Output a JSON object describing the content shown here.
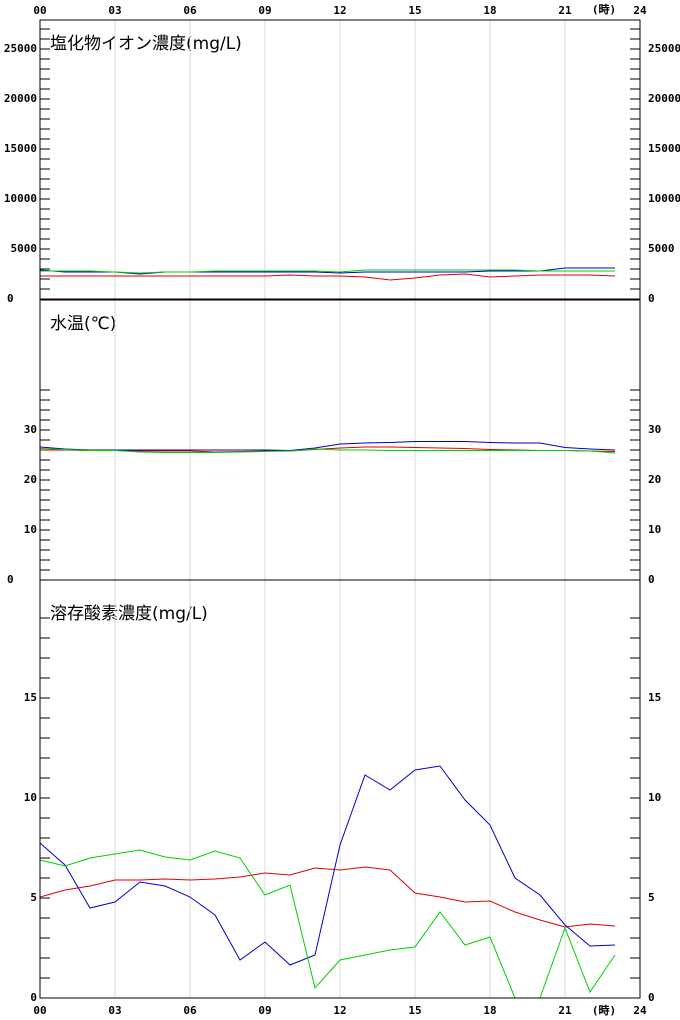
{
  "chart_data": [
    {
      "type": "line",
      "title": "塩化物イオン濃度(mg/L)",
      "xlabel": "(時)",
      "xtick_labels": "top",
      "x": [
        0,
        1,
        2,
        3,
        4,
        5,
        6,
        7,
        8,
        9,
        10,
        11,
        12,
        13,
        14,
        15,
        16,
        17,
        18,
        19,
        20,
        21,
        22,
        23
      ],
      "xlim": [
        0,
        24
      ],
      "xticks": [
        {
          "value": 0,
          "label": "00"
        },
        {
          "value": 3,
          "label": "03"
        },
        {
          "value": 6,
          "label": "06"
        },
        {
          "value": 9,
          "label": "09"
        },
        12,
        15,
        18,
        21,
        24
      ],
      "ylim": [
        0,
        27900
      ],
      "yticks": [
        0,
        5000,
        10000,
        15000,
        20000,
        25000
      ],
      "minor_yticks": [
        1000,
        2000,
        3000,
        4000,
        6000,
        7000,
        8000,
        9000,
        11000,
        12000,
        13000,
        14000,
        16000,
        17000,
        18000,
        19000,
        21000,
        22000,
        23000,
        24000,
        26000,
        27000
      ],
      "grid": true,
      "series": [
        {
          "color": "#e00000",
          "values": [
            2300,
            2300,
            2300,
            2300,
            2300,
            2300,
            2300,
            2300,
            2300,
            2300,
            2400,
            2300,
            2300,
            2200,
            1900,
            2100,
            2400,
            2500,
            2200,
            2300,
            2400,
            2400,
            2400,
            2300
          ]
        },
        {
          "color": "#0000cc",
          "values": [
            2900,
            2700,
            2700,
            2700,
            2500,
            2700,
            2700,
            2700,
            2700,
            2700,
            2700,
            2700,
            2600,
            2700,
            2700,
            2700,
            2700,
            2700,
            2800,
            2800,
            2800,
            3100,
            3100,
            3100
          ]
        },
        {
          "color": "#00d000",
          "values": [
            2800,
            2800,
            2800,
            2700,
            2600,
            2700,
            2700,
            2800,
            2800,
            2800,
            2800,
            2800,
            2700,
            2900,
            2900,
            2900,
            2900,
            2900,
            2900,
            2900,
            2800,
            2800,
            2800,
            2800
          ]
        }
      ]
    },
    {
      "type": "line",
      "title": "水温(℃)",
      "xtick_labels": "none",
      "x": [
        0,
        1,
        2,
        3,
        4,
        5,
        6,
        7,
        8,
        9,
        10,
        11,
        12,
        13,
        14,
        15,
        16,
        17,
        18,
        19,
        20,
        21,
        22,
        23
      ],
      "xlim": [
        0,
        24
      ],
      "xticks": [
        0,
        3,
        6,
        9,
        12,
        15,
        18,
        21,
        24
      ],
      "ylim": [
        0,
        56
      ],
      "yticks": [
        0,
        10,
        20,
        30
      ],
      "minor_yticks": [
        2,
        4,
        6,
        8,
        12,
        14,
        16,
        18,
        22,
        24,
        26,
        28,
        32,
        34,
        36,
        38
      ],
      "grid": true,
      "series": [
        {
          "color": "#e00000",
          "values": [
            26.0,
            26.0,
            25.9,
            25.9,
            25.8,
            25.8,
            25.8,
            25.6,
            25.7,
            25.8,
            25.8,
            26.1,
            26.4,
            26.6,
            26.6,
            26.5,
            26.4,
            26.3,
            26.1,
            26.0,
            25.9,
            25.9,
            25.8,
            25.7
          ]
        },
        {
          "color": "#0000cc",
          "values": [
            26.6,
            26.2,
            26.0,
            26.0,
            26.0,
            26.0,
            26.0,
            26.0,
            26.0,
            26.0,
            25.9,
            26.4,
            27.2,
            27.4,
            27.5,
            27.7,
            27.7,
            27.7,
            27.5,
            27.4,
            27.4,
            26.5,
            26.2,
            26.0
          ]
        },
        {
          "color": "#00d000",
          "values": [
            26.3,
            26.1,
            25.9,
            25.9,
            25.6,
            25.5,
            25.5,
            25.5,
            25.6,
            25.7,
            25.8,
            26.2,
            26.0,
            26.0,
            25.9,
            25.9,
            25.9,
            25.9,
            25.9,
            25.9,
            25.9,
            25.9,
            25.8,
            25.4
          ]
        }
      ]
    },
    {
      "type": "line",
      "title": "溶存酸素濃度(mg/L)",
      "xlabel": "(時)",
      "xtick_labels": "bottom",
      "x": [
        0,
        1,
        2,
        3,
        4,
        5,
        6,
        7,
        8,
        9,
        10,
        11,
        12,
        13,
        14,
        15,
        16,
        17,
        18,
        19,
        20,
        21,
        22,
        23
      ],
      "xlim": [
        0,
        24
      ],
      "xticks": [
        {
          "value": 0,
          "label": "00"
        },
        {
          "value": 3,
          "label": "03"
        },
        {
          "value": 6,
          "label": "06"
        },
        {
          "value": 9,
          "label": "09"
        },
        12,
        15,
        18,
        21,
        24
      ],
      "ylim": [
        0,
        20.9
      ],
      "yticks": [
        0,
        5,
        10,
        15
      ],
      "minor_yticks": [
        1,
        2,
        3,
        4,
        6,
        7,
        8,
        9,
        11,
        12,
        13,
        14,
        16,
        17,
        18,
        19
      ],
      "grid": true,
      "series": [
        {
          "color": "#e00000",
          "values": [
            5.05,
            5.4,
            5.6,
            5.9,
            5.9,
            5.95,
            5.9,
            5.95,
            6.05,
            6.25,
            6.15,
            6.5,
            6.4,
            6.55,
            6.4,
            5.25,
            5.05,
            4.8,
            4.85,
            4.3,
            3.9,
            3.55,
            3.7,
            3.6
          ]
        },
        {
          "color": "#0000cc",
          "values": [
            7.75,
            6.65,
            4.5,
            4.8,
            5.8,
            5.6,
            5.05,
            4.15,
            1.9,
            2.8,
            1.65,
            2.15,
            7.65,
            11.15,
            10.4,
            11.4,
            11.6,
            9.9,
            8.65,
            6.0,
            5.15,
            3.65,
            2.6,
            2.65
          ]
        },
        {
          "color": "#00d000",
          "values": [
            6.9,
            6.6,
            7.0,
            7.2,
            7.4,
            7.05,
            6.9,
            7.35,
            7.0,
            5.15,
            5.65,
            0.5,
            1.9,
            2.15,
            2.4,
            2.55,
            4.3,
            2.65,
            3.05,
            0,
            0,
            3.5,
            0.3,
            2.15
          ]
        }
      ]
    }
  ]
}
